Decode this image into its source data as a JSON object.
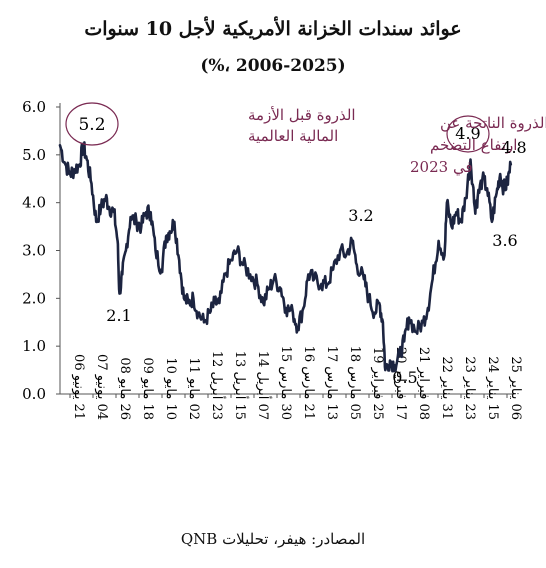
{
  "title": "عوائد سندات الخزانة الأمريكية لأجل 10 سنوات",
  "subtitle": "(%، 2006-2025)",
  "source": "المصادر: هيفر، تحليلات QNB",
  "colors": {
    "line": "#1c2440",
    "annotation": "#7a2a52",
    "axis": "#555555"
  },
  "chart_data": {
    "type": "line",
    "title": "عوائد سندات الخزانة الأمريكية لأجل 10 سنوات",
    "subtitle": "(%، 2006-2025)",
    "ylim": [
      0,
      6
    ],
    "yticks": [
      "0.0",
      "1.0",
      "2.0",
      "3.0",
      "4.0",
      "5.0",
      "6.0"
    ],
    "grid": false,
    "x_tick_labels": [
      "21 يونيو 06",
      "04 يونيو 07",
      "26 مايو 08",
      "18 مايو 09",
      "10 مايو 10",
      "02 مايو 11",
      "23 أبريل 12",
      "15 أبريل 13",
      "07 أبريل 14",
      "30 مارس 15",
      "21 مارس 16",
      "13 مارس 17",
      "05 مارس 18",
      "25 فبراير 19",
      "17 فبراير 20",
      "08 فبراير 21",
      "31 يناير 22",
      "23 يناير 23",
      "15 يناير 24",
      "06 يناير 25"
    ],
    "series": [
      {
        "x": [
          2006.47,
          2006.7,
          2006.9,
          2007.1,
          2007.3,
          2007.45,
          2007.6,
          2007.8,
          2008.0,
          2008.2,
          2008.4,
          2008.55,
          2008.75,
          2008.9,
          2008.98,
          2009.1,
          2009.25,
          2009.45,
          2009.7,
          2009.9,
          2010.1,
          2010.3,
          2010.5,
          2010.75,
          2010.95,
          2011.1,
          2011.3,
          2011.5,
          2011.7,
          2011.9,
          2012.1,
          2012.3,
          2012.55,
          2012.8,
          2013.0,
          2013.2,
          2013.45,
          2013.7,
          2013.95,
          2014.2,
          2014.5,
          2014.8,
          2015.05,
          2015.3,
          2015.5,
          2015.8,
          2016.0,
          2016.3,
          2016.5,
          2016.75,
          2016.95,
          2017.2,
          2017.5,
          2017.75,
          2018.0,
          2018.3,
          2018.55,
          2018.8,
          2019.0,
          2019.3,
          2019.5,
          2019.75,
          2019.95,
          2020.1,
          2020.2,
          2020.4,
          2020.6,
          2020.8,
          2021.0,
          2021.2,
          2021.5,
          2021.8,
          2022.0,
          2022.2,
          2022.45,
          2022.7,
          2022.8,
          2023.0,
          2023.2,
          2023.4,
          2023.6,
          2023.8,
          2023.98,
          2024.1,
          2024.3,
          2024.5,
          2024.7,
          2024.9,
          2025.05,
          2025.2,
          2025.35,
          2025.5
        ],
        "y": [
          5.2,
          4.8,
          4.6,
          4.7,
          4.8,
          5.2,
          4.9,
          4.4,
          3.6,
          3.9,
          4.1,
          3.9,
          3.8,
          3.2,
          2.1,
          2.5,
          3.0,
          3.7,
          3.6,
          3.5,
          3.8,
          3.8,
          3.0,
          2.6,
          3.3,
          3.4,
          3.6,
          2.8,
          2.0,
          1.9,
          2.0,
          1.7,
          1.5,
          1.7,
          1.9,
          1.9,
          2.5,
          2.8,
          3.0,
          2.7,
          2.5,
          2.3,
          1.9,
          2.2,
          2.4,
          2.2,
          1.8,
          1.7,
          1.4,
          1.8,
          2.5,
          2.4,
          2.3,
          2.3,
          2.6,
          3.0,
          2.9,
          3.2,
          2.7,
          2.4,
          2.0,
          1.7,
          1.9,
          1.5,
          0.5,
          0.7,
          0.6,
          0.8,
          1.1,
          1.6,
          1.3,
          1.5,
          1.8,
          2.4,
          3.2,
          2.9,
          4.0,
          3.5,
          3.8,
          3.6,
          4.1,
          4.9,
          3.9,
          4.1,
          4.5,
          4.3,
          3.6,
          4.2,
          4.6,
          4.3,
          4.4,
          4.8
        ]
      }
    ],
    "annotations": {
      "peak_2007_value": "5.2",
      "peak_2007_label": [
        "الذروة قبل الأزمة",
        "المالية العالمية"
      ],
      "peak_2023_value": "4.9",
      "peak_2023_label": [
        "الذروة الناتجة عن",
        "ارتفاع التضخم",
        "في 2023"
      ],
      "low_2008": "2.1",
      "level_2018": "3.2",
      "low_2020": "0.5",
      "last": "4.8",
      "recent_low": "3.6"
    }
  }
}
